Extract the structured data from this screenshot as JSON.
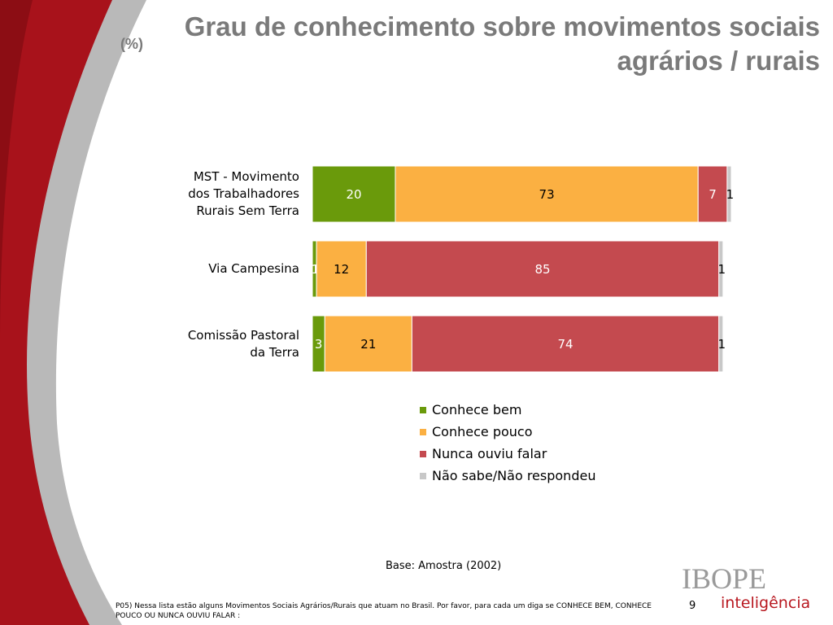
{
  "title": "Grau de conhecimento sobre movimentos sociais agrários / rurais",
  "unit_label": "(%)",
  "chart_data": {
    "type": "bar",
    "orientation": "horizontal",
    "stacked": true,
    "categories": [
      "MST - Movimento dos Trabalhadores Rurais Sem Terra",
      "Via Campesina",
      "Comissão Pastoral da Terra"
    ],
    "series": [
      {
        "name": "Conhece bem",
        "values": [
          20,
          1,
          3
        ],
        "color": "#6a9a0b"
      },
      {
        "name": "Conhece pouco",
        "values": [
          73,
          12,
          21
        ],
        "color": "#fbb042"
      },
      {
        "name": "Nunca ouviu falar",
        "values": [
          7,
          85,
          74
        ],
        "color": "#c44a4f"
      },
      {
        "name": "Não sabe/Não respondeu",
        "values": [
          1,
          1,
          1
        ],
        "color": "#c8c8c8"
      }
    ],
    "xlim": [
      0,
      101
    ],
    "grid": false,
    "legend_position": "bottom"
  },
  "category_lines": [
    [
      "MST - Movimento",
      "dos Trabalhadores",
      "Rurais Sem Terra"
    ],
    [
      "Via Campesina"
    ],
    [
      "Comissão Pastoral",
      "da Terra"
    ]
  ],
  "base_note": "Base: Amostra (2002)",
  "footnote": "P05) Nessa lista estão alguns Movimentos Sociais Agrários/Rurais que atuam no Brasil. Por favor, para cada um diga se CONHECE BEM, CONHECE POUCO OU NUNCA OUVIU FALAR :",
  "page_number": "9",
  "logo": {
    "name": "IBOPE",
    "subtitle": "inteligência"
  }
}
